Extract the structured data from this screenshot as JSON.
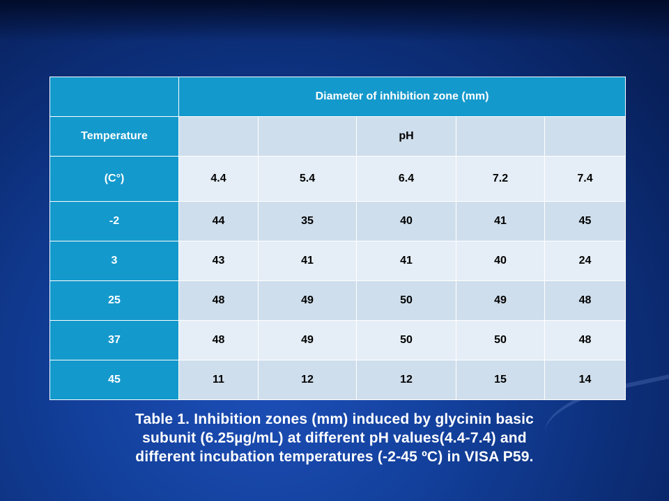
{
  "table": {
    "header_title": "Diameter of inhibition zone (mm)",
    "temperature_label": "Temperature",
    "ph_label": "pH",
    "unit_label": "(C°)",
    "ph_values": [
      "4.4",
      "5.4",
      "6.4",
      "7.2",
      "7.4"
    ],
    "rows": [
      {
        "temp": "-2",
        "values": [
          "44",
          "35",
          "40",
          "41",
          "45"
        ]
      },
      {
        "temp": "3",
        "values": [
          "43",
          "41",
          "41",
          "40",
          "24"
        ]
      },
      {
        "temp": "25",
        "values": [
          "48",
          "49",
          "50",
          "49",
          "48"
        ]
      },
      {
        "temp": "37",
        "values": [
          "48",
          "49",
          "50",
          "50",
          "48"
        ]
      },
      {
        "temp": "45",
        "values": [
          "11",
          "12",
          "12",
          "15",
          "14"
        ]
      }
    ]
  },
  "caption": {
    "line1": "Table 1. Inhibition zones (mm) induced by glycinin basic",
    "line2": "subunit (6.25µg/mL) at different pH values(4.4-7.4) and",
    "line3": "different incubation temperatures (-2-45 ºC) in VISA P59."
  },
  "colors": {
    "header_cell": "#1499cc",
    "body_cell": "#cfdeec",
    "body_cell_alt": "#e5eef6",
    "background": "#123f9a"
  }
}
